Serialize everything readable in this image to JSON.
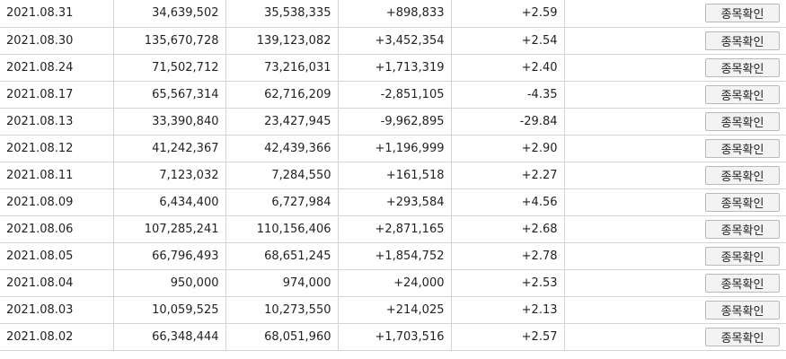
{
  "button_label": "종목확인",
  "colors": {
    "positive": "#e0242f",
    "negative": "#1f5fd1"
  },
  "rows": [
    {
      "date": "2021.08.31",
      "col2": "34,639,502",
      "col3": "35,538,335",
      "change": "+898,833",
      "rate": "+2.59",
      "dir": "pos"
    },
    {
      "date": "2021.08.30",
      "col2": "135,670,728",
      "col3": "139,123,082",
      "change": "+3,452,354",
      "rate": "+2.54",
      "dir": "pos"
    },
    {
      "date": "2021.08.24",
      "col2": "71,502,712",
      "col3": "73,216,031",
      "change": "+1,713,319",
      "rate": "+2.40",
      "dir": "pos"
    },
    {
      "date": "2021.08.17",
      "col2": "65,567,314",
      "col3": "62,716,209",
      "change": "-2,851,105",
      "rate": "-4.35",
      "dir": "neg"
    },
    {
      "date": "2021.08.13",
      "col2": "33,390,840",
      "col3": "23,427,945",
      "change": "-9,962,895",
      "rate": "-29.84",
      "dir": "neg"
    },
    {
      "date": "2021.08.12",
      "col2": "41,242,367",
      "col3": "42,439,366",
      "change": "+1,196,999",
      "rate": "+2.90",
      "dir": "pos"
    },
    {
      "date": "2021.08.11",
      "col2": "7,123,032",
      "col3": "7,284,550",
      "change": "+161,518",
      "rate": "+2.27",
      "dir": "pos"
    },
    {
      "date": "2021.08.09",
      "col2": "6,434,400",
      "col3": "6,727,984",
      "change": "+293,584",
      "rate": "+4.56",
      "dir": "pos"
    },
    {
      "date": "2021.08.06",
      "col2": "107,285,241",
      "col3": "110,156,406",
      "change": "+2,871,165",
      "rate": "+2.68",
      "dir": "pos"
    },
    {
      "date": "2021.08.05",
      "col2": "66,796,493",
      "col3": "68,651,245",
      "change": "+1,854,752",
      "rate": "+2.78",
      "dir": "pos"
    },
    {
      "date": "2021.08.04",
      "col2": "950,000",
      "col3": "974,000",
      "change": "+24,000",
      "rate": "+2.53",
      "dir": "pos"
    },
    {
      "date": "2021.08.03",
      "col2": "10,059,525",
      "col3": "10,273,550",
      "change": "+214,025",
      "rate": "+2.13",
      "dir": "pos"
    },
    {
      "date": "2021.08.02",
      "col2": "66,348,444",
      "col3": "68,051,960",
      "change": "+1,703,516",
      "rate": "+2.57",
      "dir": "pos"
    }
  ]
}
